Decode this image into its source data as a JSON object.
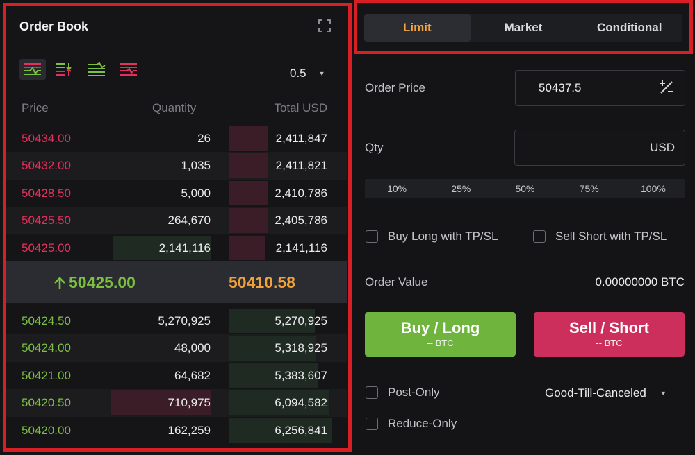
{
  "order_book": {
    "title": "Order Book",
    "precision": "0.5",
    "headers": {
      "price": "Price",
      "quantity": "Quantity",
      "total": "Total USD"
    },
    "asks": [
      {
        "price": "50434.00",
        "qty": "26",
        "total": "2,411,847"
      },
      {
        "price": "50432.00",
        "qty": "1,035",
        "total": "2,411,821"
      },
      {
        "price": "50428.50",
        "qty": "5,000",
        "total": "2,410,786"
      },
      {
        "price": "50425.50",
        "qty": "264,670",
        "total": "2,405,786"
      },
      {
        "price": "50425.00",
        "qty": "2,141,116",
        "total": "2,141,116"
      }
    ],
    "last_price": "50425.00",
    "mark_price": "50410.58",
    "bids": [
      {
        "price": "50424.50",
        "qty": "5,270,925",
        "total": "5,270,925"
      },
      {
        "price": "50424.00",
        "qty": "48,000",
        "total": "5,318,925"
      },
      {
        "price": "50421.00",
        "qty": "64,682",
        "total": "5,383,607"
      },
      {
        "price": "50420.50",
        "qty": "710,975",
        "total": "6,094,582"
      },
      {
        "price": "50420.00",
        "qty": "162,259",
        "total": "6,256,841"
      }
    ],
    "view_icons": [
      "both-sides-icon",
      "split-view-icon",
      "bids-only-icon",
      "asks-only-icon"
    ]
  },
  "trade": {
    "tabs": [
      "Limit",
      "Market",
      "Conditional"
    ],
    "active_tab": "Limit",
    "order_price_label": "Order Price",
    "order_price_value": "50437.5",
    "qty_label": "Qty",
    "qty_unit": "USD",
    "percentages": [
      "10%",
      "25%",
      "50%",
      "75%",
      "100%"
    ],
    "buy_tpsl_label": "Buy Long with TP/SL",
    "sell_tpsl_label": "Sell Short with TP/SL",
    "order_value_label": "Order Value",
    "order_value": "0.00000000 BTC",
    "buy_label": "Buy / Long",
    "buy_sub": "-- BTC",
    "sell_label": "Sell / Short",
    "sell_sub": "-- BTC",
    "post_only_label": "Post-Only",
    "reduce_only_label": "Reduce-Only",
    "time_in_force": "Good-Till-Canceled"
  },
  "colors": {
    "sell": "#e5305c",
    "buy": "#7cc043",
    "mark": "#f0a23a",
    "highlight_border": "#d81f26",
    "buy_button": "#6fb43d",
    "sell_button": "#cc2f5c"
  }
}
